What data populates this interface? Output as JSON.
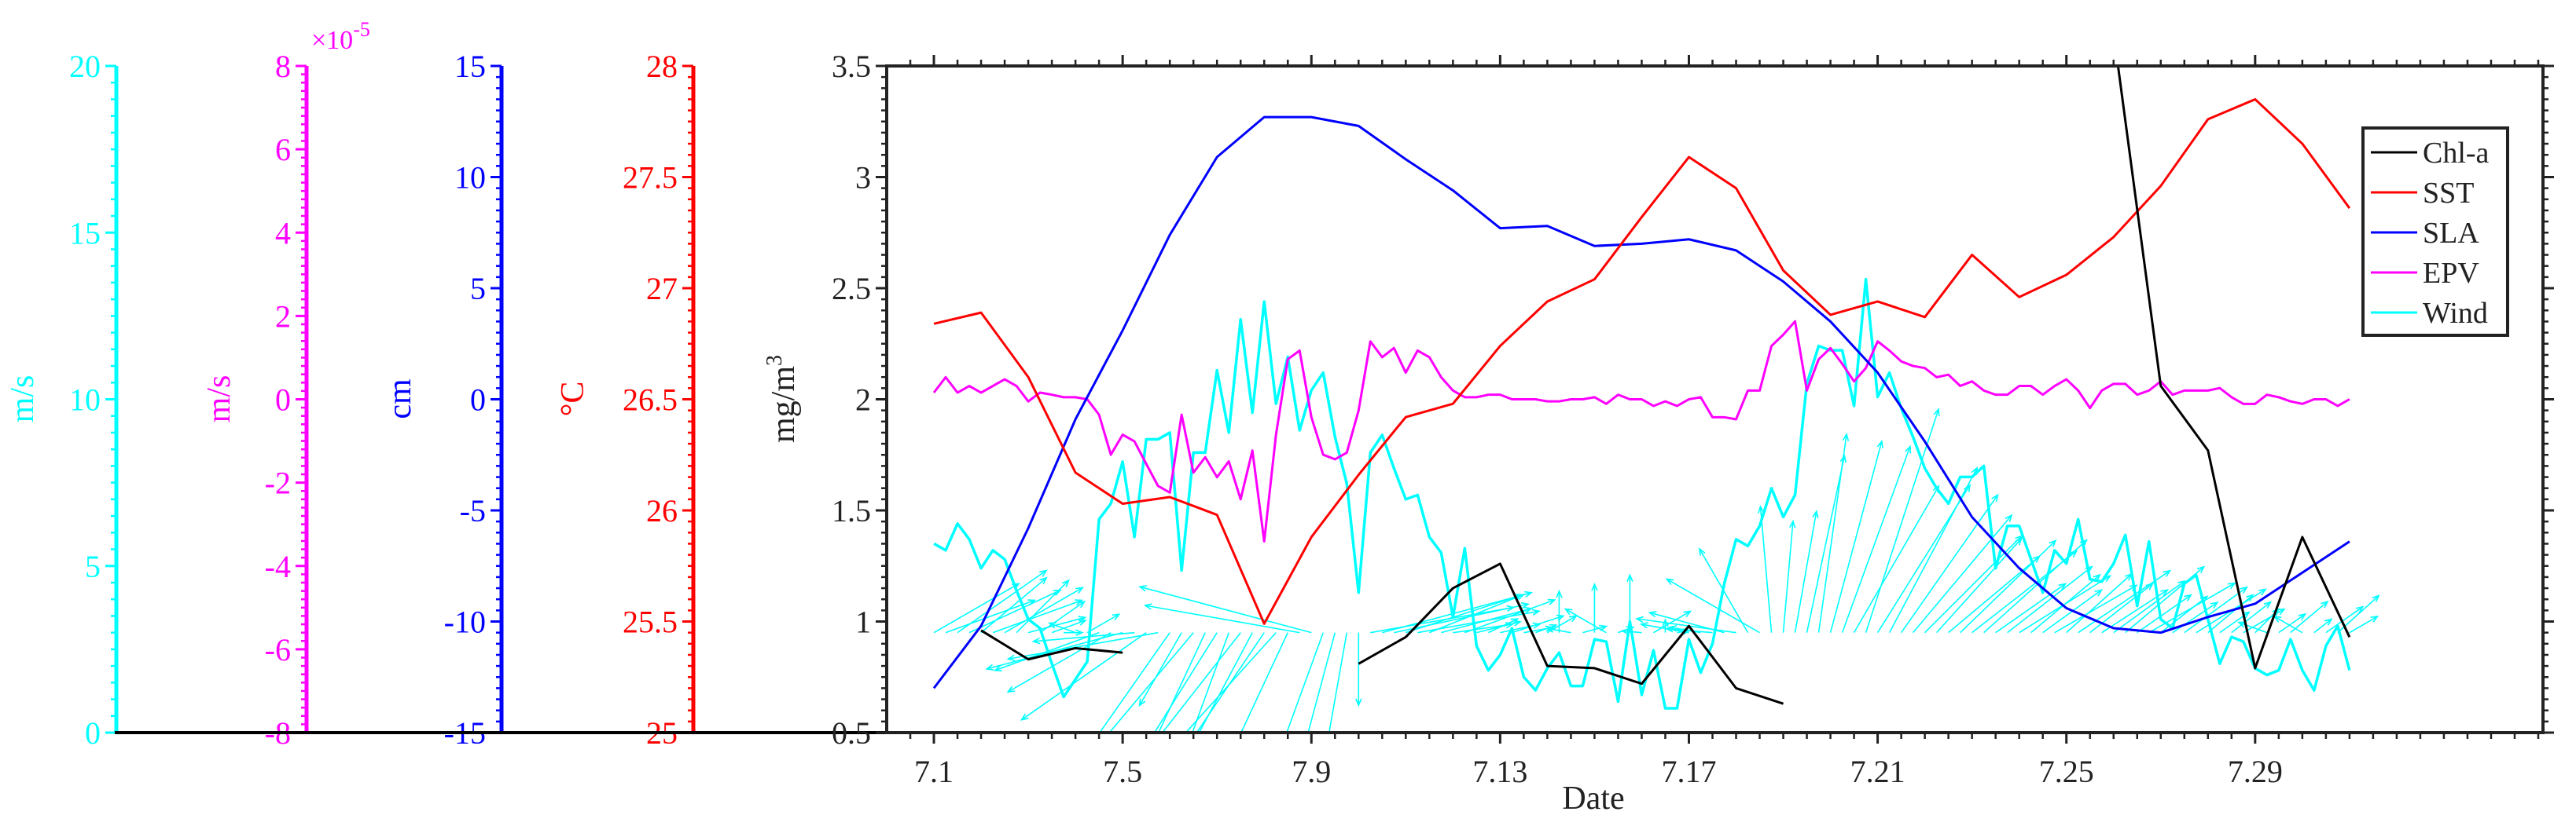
{
  "chart_data": {
    "type": "line",
    "xlabel": "Date",
    "x_ticks": [
      1,
      5,
      9,
      13,
      17,
      21,
      25,
      29
    ],
    "x_tick_labels": [
      "7.1",
      "7.5",
      "7.9",
      "7.13",
      "7.17",
      "7.21",
      "7.25",
      "7.29"
    ],
    "xlim_day_of_july": [
      0,
      35.1
    ],
    "grid": false,
    "legend_position": "top-right",
    "legend": [
      "Chl-a",
      "SST",
      "SLA",
      "EPV",
      "Wind"
    ],
    "main_axis": {
      "ylabel": "mg/m",
      "ylabel_sup": "3",
      "ylim": [
        0.5,
        3.5
      ],
      "ticks": [
        "0.5",
        "1",
        "1.5",
        "2",
        "2.5",
        "3",
        "3.5"
      ]
    },
    "side_axes": [
      {
        "series": "Wind",
        "label": "m/s",
        "color": "#00FFFF",
        "ylim": [
          0,
          20
        ],
        "ticks": [
          "0",
          "5",
          "10",
          "15",
          "20"
        ],
        "minor_step": 0.5
      },
      {
        "series": "EPV",
        "label": "m/s",
        "color": "#FF00FF",
        "ylim": [
          -8,
          8
        ],
        "ticks": [
          "-8",
          "-6",
          "-4",
          "-2",
          "0",
          "2",
          "4",
          "6",
          "8"
        ],
        "minor_step": 0.2,
        "multiplier_base": "×10",
        "multiplier_exp": "-5"
      },
      {
        "series": "SLA",
        "label": "cm",
        "color": "#0000FF",
        "ylim": [
          -15,
          15
        ],
        "ticks": [
          "-15",
          "-10",
          "-5",
          "0",
          "5",
          "10",
          "15"
        ],
        "minor_step": 0.5
      },
      {
        "series": "SST",
        "label": "°C",
        "color": "#FF0000",
        "ylim": [
          25,
          28
        ],
        "ticks": [
          "25",
          "25.5",
          "26",
          "26.5",
          "27",
          "27.5",
          "28"
        ],
        "minor_step": 0.05
      }
    ],
    "series": [
      {
        "name": "Chl-a",
        "color": "#000000",
        "units": "mg/m3",
        "ylim": [
          0.5,
          3.5
        ],
        "x_start": 1,
        "x_step": 1,
        "values": [
          null,
          0.96,
          0.83,
          0.88,
          0.86,
          null,
          null,
          null,
          null,
          0.81,
          0.93,
          1.15,
          1.26,
          0.8,
          0.79,
          0.72,
          0.98,
          0.7,
          0.63,
          null,
          null,
          null,
          null,
          null,
          null,
          3.65,
          2.06,
          1.77,
          0.79,
          1.38,
          0.93
        ]
      },
      {
        "name": "SST",
        "color": "#FF0000",
        "units": "°C",
        "ylim": [
          25,
          28
        ],
        "x_start": 1,
        "x_step": 1,
        "values": [
          26.84,
          26.89,
          26.6,
          26.17,
          26.03,
          26.06,
          25.98,
          25.49,
          25.88,
          26.16,
          26.42,
          26.48,
          26.74,
          26.94,
          27.04,
          27.32,
          27.59,
          27.45,
          27.08,
          26.88,
          26.94,
          26.87,
          27.15,
          26.96,
          27.06,
          27.23,
          27.46,
          27.76,
          27.85,
          27.65,
          27.36
        ]
      },
      {
        "name": "SLA",
        "color": "#0000FF",
        "units": "cm",
        "ylim": [
          -15,
          15
        ],
        "x_start": 1,
        "x_step": 1,
        "values": [
          -13.0,
          -10.2,
          -5.8,
          -0.9,
          3.1,
          7.4,
          10.9,
          12.7,
          12.7,
          12.3,
          10.8,
          9.4,
          7.7,
          7.8,
          6.9,
          7.0,
          7.2,
          6.7,
          5.3,
          3.5,
          1.2,
          -1.9,
          -5.3,
          -7.6,
          -9.4,
          -10.3,
          -10.5,
          -9.8,
          -9.2,
          -7.8,
          -6.4
        ]
      },
      {
        "name": "EPV",
        "color": "#FF00FF",
        "units": "×10^-5 m/s",
        "ylim": [
          -8,
          8
        ],
        "x_start": 1,
        "x_step": 0.25,
        "values": [
          0.16,
          0.53,
          0.16,
          0.32,
          0.16,
          0.32,
          0.48,
          0.32,
          -0.05,
          0.16,
          0.11,
          0.05,
          0.05,
          0.0,
          -0.37,
          -1.33,
          -0.85,
          -1.01,
          -1.55,
          -2.08,
          -2.24,
          -0.37,
          -1.76,
          -1.39,
          -1.87,
          -1.49,
          -2.4,
          -1.23,
          -3.41,
          -0.85,
          0.96,
          1.17,
          -0.43,
          -1.33,
          -1.44,
          -1.28,
          -0.27,
          1.39,
          1.01,
          1.23,
          0.64,
          1.17,
          1.01,
          0.53,
          0.21,
          0.05,
          0.05,
          0.11,
          0.11,
          0.0,
          0.0,
          0.0,
          -0.05,
          -0.05,
          0.0,
          0.0,
          0.05,
          -0.11,
          0.11,
          0.0,
          0.0,
          -0.16,
          -0.05,
          -0.16,
          0.0,
          0.05,
          -0.43,
          -0.43,
          -0.48,
          0.21,
          0.21,
          1.28,
          1.55,
          1.87,
          0.21,
          0.96,
          1.23,
          0.85,
          0.43,
          0.75,
          1.39,
          1.17,
          0.91,
          0.8,
          0.75,
          0.53,
          0.59,
          0.32,
          0.43,
          0.21,
          0.11,
          0.11,
          0.32,
          0.32,
          0.11,
          0.32,
          0.48,
          0.21,
          -0.21,
          0.21,
          0.37,
          0.37,
          0.11,
          0.21,
          0.43,
          0.11,
          0.21,
          0.21,
          0.21,
          0.27,
          0.05,
          -0.11,
          -0.11,
          0.11,
          0.05,
          -0.05,
          -0.11,
          0.0,
          0.0,
          -0.16,
          0.0
        ]
      },
      {
        "name": "Wind",
        "color": "#00FFFF",
        "units": "m/s",
        "ylim": [
          0,
          20
        ],
        "x_start": 1,
        "x_step": 0.25,
        "values": [
          5.67,
          5.47,
          6.27,
          5.8,
          4.93,
          5.47,
          5.2,
          4.27,
          3.4,
          3.13,
          2.07,
          1.07,
          1.6,
          2.13,
          6.4,
          6.87,
          8.13,
          5.87,
          8.8,
          8.8,
          9.0,
          4.87,
          8.4,
          8.4,
          10.87,
          9.0,
          12.4,
          9.6,
          12.93,
          9.87,
          11.27,
          9.07,
          10.27,
          10.8,
          8.87,
          7.47,
          4.2,
          8.4,
          8.93,
          7.93,
          7.0,
          7.13,
          5.87,
          5.4,
          3.47,
          5.53,
          2.6,
          1.87,
          2.33,
          3.13,
          1.67,
          1.27,
          1.93,
          2.4,
          1.4,
          1.4,
          2.8,
          2.73,
          0.93,
          3.33,
          1.13,
          2.47,
          0.73,
          0.73,
          2.8,
          1.8,
          2.67,
          4.47,
          5.8,
          5.6,
          6.2,
          7.33,
          6.47,
          7.13,
          10.47,
          11.6,
          11.47,
          11.47,
          9.8,
          13.6,
          10.07,
          10.8,
          9.73,
          8.87,
          7.93,
          7.33,
          6.87,
          7.67,
          7.67,
          8.0,
          4.93,
          6.2,
          6.2,
          5.2,
          4.2,
          5.47,
          5.07,
          6.4,
          4.6,
          4.53,
          5.07,
          5.93,
          3.8,
          5.73,
          3.4,
          3.13,
          4.47,
          4.73,
          3.4,
          2.07,
          2.87,
          2.73,
          1.93,
          1.73,
          1.87,
          2.8,
          1.87,
          1.27,
          2.6,
          3.2,
          1.87
        ],
        "direction_deg": [
          30,
          20,
          35,
          25,
          40,
          20,
          30,
          45,
          15,
          35,
          20,
          0,
          160,
          30,
          200,
          210,
          195,
          185,
          215,
          190,
          235,
          240,
          230,
          245,
          238,
          250,
          232,
          242,
          236,
          228,
          245,
          170,
          165,
          250,
          255,
          260,
          270,
          10,
          15,
          12,
          18,
          10,
          22,
          15,
          8,
          20,
          14,
          25,
          12,
          18,
          10,
          20,
          30,
          90,
          170,
          15,
          90,
          150,
          20,
          90,
          175,
          30,
          90,
          10,
          170,
          170,
          175,
          165,
          172,
          120,
          150,
          95,
          85,
          80,
          78,
          82,
          75,
          70,
          60,
          72,
          58,
          62,
          55,
          50,
          45,
          48,
          40,
          44,
          38,
          42,
          35,
          38,
          32,
          40,
          36,
          30,
          42,
          34,
          38,
          33,
          36,
          40,
          35,
          30,
          38,
          34,
          36,
          32,
          40,
          35,
          38,
          30,
          45,
          160,
          35,
          40,
          150,
          38,
          35,
          42,
          30
        ],
        "vector_origin_mg_m3": 0.95
      }
    ]
  }
}
